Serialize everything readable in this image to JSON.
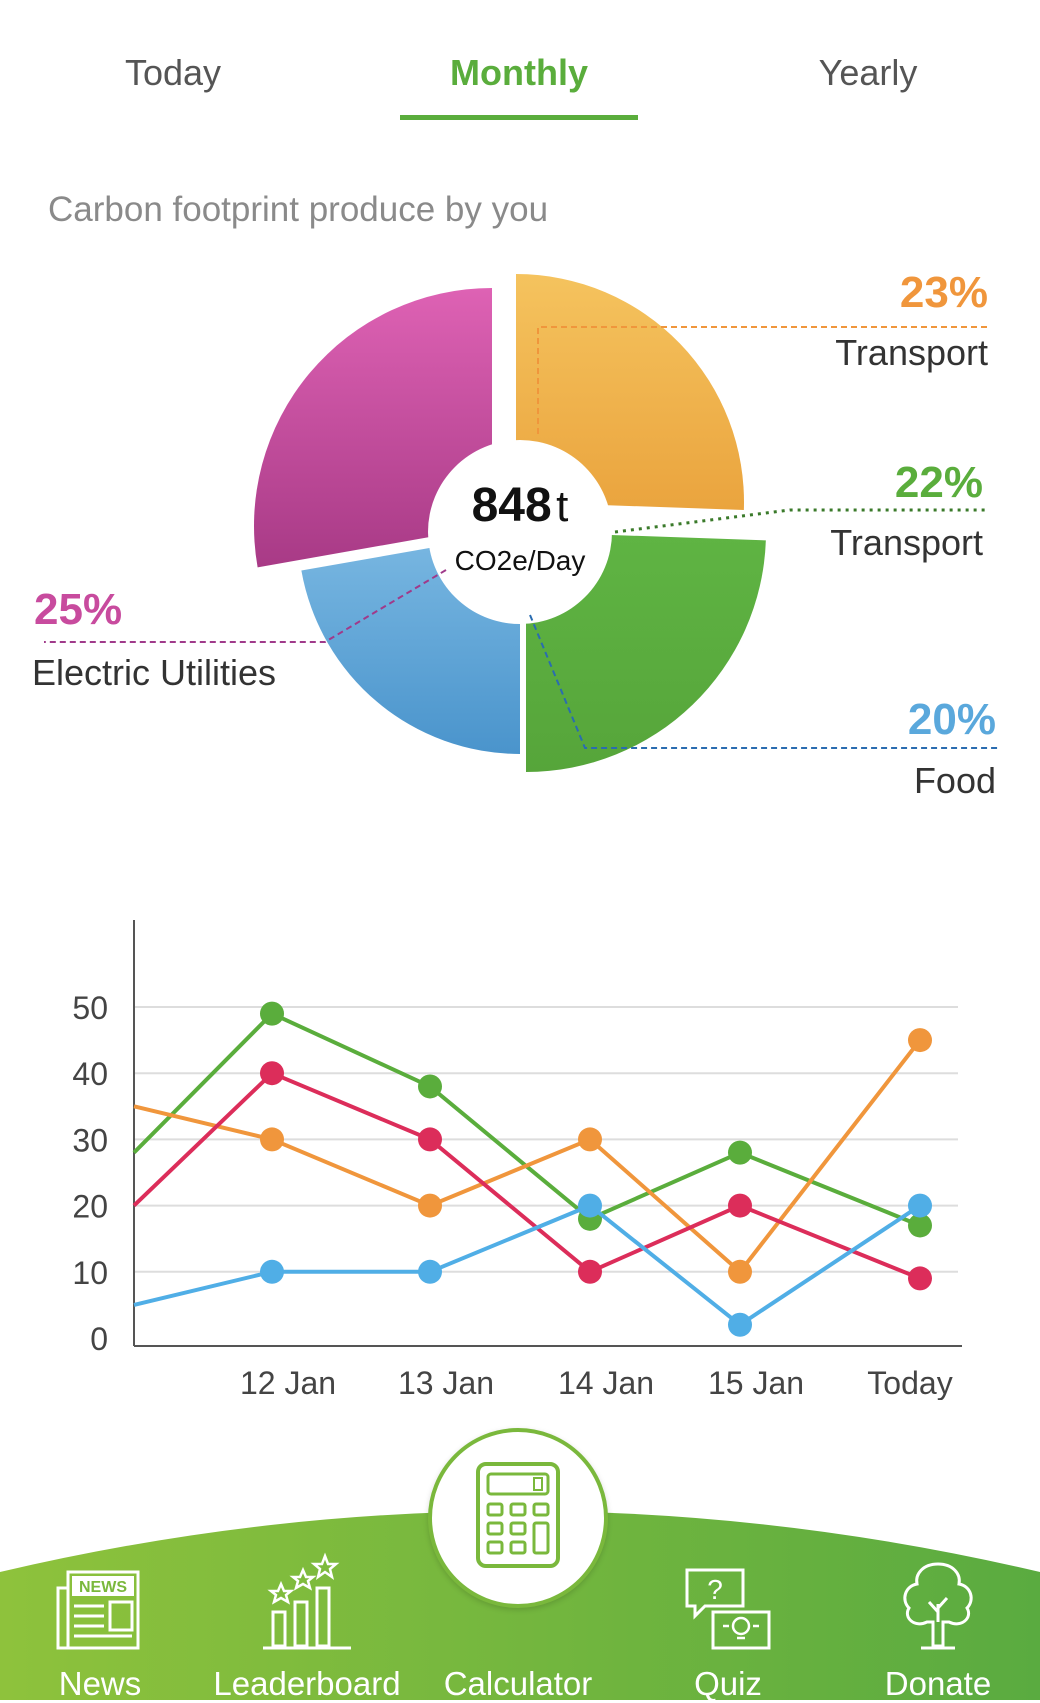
{
  "tabs": [
    {
      "label": "Today",
      "active": false
    },
    {
      "label": "Monthly",
      "active": true
    },
    {
      "label": "Yearly",
      "active": false
    }
  ],
  "section_title": "Carbon footprint produce by you",
  "pie": {
    "center_value": "848",
    "center_unit": "t",
    "center_sub": "CO2e/Day",
    "slices": [
      {
        "pct": "23%",
        "label": "Transport",
        "value": 23,
        "color": "#f0b44c"
      },
      {
        "pct": "22%",
        "label": "Transport",
        "value": 22,
        "color": "#5aad3c"
      },
      {
        "pct": "20%",
        "label": "Food",
        "value": 20,
        "color": "#5aa8dc"
      },
      {
        "pct": "25%",
        "label": "Electric Utilities",
        "value": 25,
        "color": "#c84b9e"
      }
    ]
  },
  "chart_data": {
    "type": "line",
    "categories": [
      "",
      "12 Jan",
      "13 Jan",
      "14 Jan",
      "15 Jan",
      "Today"
    ],
    "ylim": [
      0,
      50
    ],
    "yticks": [
      "0",
      "10",
      "20",
      "30",
      "40",
      "50"
    ],
    "grid": true,
    "series": [
      {
        "color": "#5aad3c",
        "values": [
          28,
          49,
          38,
          18,
          28,
          17
        ]
      },
      {
        "color": "#f0963c",
        "values": [
          35,
          30,
          20,
          30,
          10,
          45
        ]
      },
      {
        "color": "#dc2d5a",
        "values": [
          20,
          40,
          30,
          10,
          20,
          9
        ]
      },
      {
        "color": "#50aee6",
        "values": [
          5,
          10,
          10,
          20,
          2,
          20
        ]
      }
    ]
  },
  "nav": {
    "items": [
      {
        "label": "News",
        "icon": "news-icon"
      },
      {
        "label": "Leaderboard",
        "icon": "leaderboard-icon"
      },
      {
        "label": "Calculator",
        "icon": "calculator-icon"
      },
      {
        "label": "Quiz",
        "icon": "quiz-icon"
      },
      {
        "label": "Donate",
        "icon": "donate-icon"
      }
    ],
    "news_icon_text": "NEWS",
    "active_index": 2
  }
}
